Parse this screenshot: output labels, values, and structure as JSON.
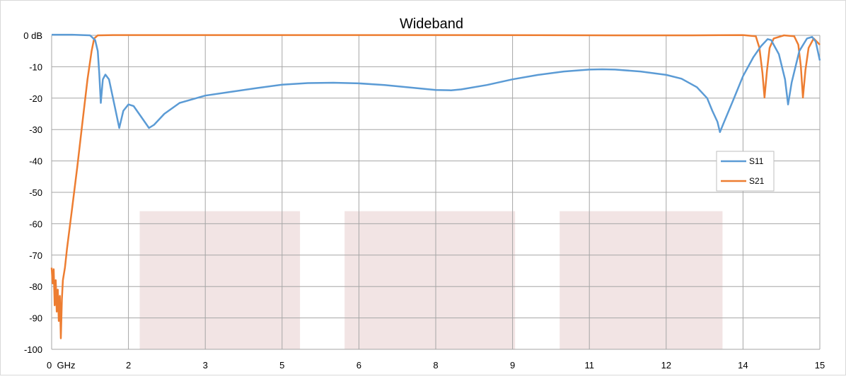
{
  "chart_data": {
    "type": "line",
    "title": "Wideband",
    "xlabel": "",
    "ylabel": "",
    "xlim": [
      0,
      15
    ],
    "ylim": [
      -100,
      0
    ],
    "grid": true,
    "legend_placement": "right",
    "x_ticks": [
      {
        "value": 0,
        "label": "0  GHz"
      },
      {
        "value": 1.5,
        "label": "2"
      },
      {
        "value": 3,
        "label": "3"
      },
      {
        "value": 4.5,
        "label": "5"
      },
      {
        "value": 6,
        "label": "6"
      },
      {
        "value": 7.5,
        "label": "8"
      },
      {
        "value": 9,
        "label": "9"
      },
      {
        "value": 10.5,
        "label": "11"
      },
      {
        "value": 12,
        "label": "12"
      },
      {
        "value": 13.5,
        "label": "14"
      },
      {
        "value": 15,
        "label": "15"
      }
    ],
    "y_ticks": [
      {
        "value": 0,
        "label": "0 dB"
      },
      {
        "value": -10,
        "label": "-10"
      },
      {
        "value": -20,
        "label": "-20"
      },
      {
        "value": -30,
        "label": "-30"
      },
      {
        "value": -40,
        "label": "-40"
      },
      {
        "value": -50,
        "label": "-50"
      },
      {
        "value": -60,
        "label": "-60"
      },
      {
        "value": -70,
        "label": "-70"
      },
      {
        "value": -80,
        "label": "-80"
      },
      {
        "value": -90,
        "label": "-90"
      },
      {
        "value": -100,
        "label": "-100"
      }
    ],
    "bands": [
      {
        "x0": 1.72,
        "x1": 4.85,
        "y0": -100,
        "y1": -56,
        "color": "#f2e4e4"
      },
      {
        "x0": 5.72,
        "x1": 9.05,
        "y0": -100,
        "y1": -56,
        "color": "#f2e4e4"
      },
      {
        "x0": 9.92,
        "x1": 13.1,
        "y0": -100,
        "y1": -56,
        "color": "#f2e4e4"
      }
    ],
    "series": [
      {
        "name": "S11",
        "color": "#5b9bd5",
        "points": [
          [
            0,
            0.2
          ],
          [
            0.4,
            0.2
          ],
          [
            0.75,
            0
          ],
          [
            0.85,
            -1.5
          ],
          [
            0.9,
            -5
          ],
          [
            0.93,
            -12
          ],
          [
            0.96,
            -21.5
          ],
          [
            1.0,
            -14
          ],
          [
            1.05,
            -12.5
          ],
          [
            1.12,
            -14
          ],
          [
            1.25,
            -24
          ],
          [
            1.32,
            -29.5
          ],
          [
            1.4,
            -24
          ],
          [
            1.5,
            -22
          ],
          [
            1.6,
            -22.5
          ],
          [
            1.75,
            -26
          ],
          [
            1.9,
            -29.5
          ],
          [
            2.0,
            -28.5
          ],
          [
            2.2,
            -25
          ],
          [
            2.5,
            -21.5
          ],
          [
            3.0,
            -19.2
          ],
          [
            3.5,
            -18
          ],
          [
            4.0,
            -16.8
          ],
          [
            4.5,
            -15.7
          ],
          [
            5.0,
            -15.2
          ],
          [
            5.5,
            -15.1
          ],
          [
            6.0,
            -15.3
          ],
          [
            6.5,
            -15.8
          ],
          [
            7.0,
            -16.6
          ],
          [
            7.5,
            -17.4
          ],
          [
            7.8,
            -17.5
          ],
          [
            8.0,
            -17.2
          ],
          [
            8.5,
            -15.8
          ],
          [
            9.0,
            -14
          ],
          [
            9.5,
            -12.6
          ],
          [
            10.0,
            -11.5
          ],
          [
            10.5,
            -10.9
          ],
          [
            10.75,
            -10.8
          ],
          [
            11.0,
            -10.9
          ],
          [
            11.5,
            -11.5
          ],
          [
            12.0,
            -12.6
          ],
          [
            12.3,
            -13.8
          ],
          [
            12.6,
            -16.5
          ],
          [
            12.8,
            -20
          ],
          [
            12.9,
            -24
          ],
          [
            13.0,
            -27.5
          ],
          [
            13.05,
            -30.8
          ],
          [
            13.12,
            -28
          ],
          [
            13.3,
            -21
          ],
          [
            13.5,
            -13
          ],
          [
            13.7,
            -7
          ],
          [
            13.85,
            -3.5
          ],
          [
            13.98,
            -1.2
          ],
          [
            14.05,
            -1.5
          ],
          [
            14.2,
            -6
          ],
          [
            14.32,
            -14
          ],
          [
            14.38,
            -22
          ],
          [
            14.45,
            -15
          ],
          [
            14.6,
            -5
          ],
          [
            14.75,
            -1
          ],
          [
            14.85,
            -0.5
          ],
          [
            14.92,
            -2
          ],
          [
            15.0,
            -8
          ]
        ]
      },
      {
        "name": "S21",
        "color": "#ed7d31",
        "points": [
          [
            0.0,
            -74
          ],
          [
            0.02,
            -79
          ],
          [
            0.04,
            -74.5
          ],
          [
            0.06,
            -86
          ],
          [
            0.08,
            -78
          ],
          [
            0.1,
            -88
          ],
          [
            0.12,
            -81
          ],
          [
            0.14,
            -91
          ],
          [
            0.16,
            -83
          ],
          [
            0.18,
            -96.5
          ],
          [
            0.2,
            -84
          ],
          [
            0.22,
            -78
          ],
          [
            0.26,
            -74
          ],
          [
            0.3,
            -68
          ],
          [
            0.4,
            -55
          ],
          [
            0.5,
            -42
          ],
          [
            0.6,
            -28
          ],
          [
            0.7,
            -14
          ],
          [
            0.78,
            -5
          ],
          [
            0.83,
            -1
          ],
          [
            0.9,
            0
          ],
          [
            1.2,
            0.1
          ],
          [
            4.0,
            0.1
          ],
          [
            8.0,
            0.1
          ],
          [
            11.0,
            0
          ],
          [
            12.5,
            0
          ],
          [
            13.5,
            0.1
          ],
          [
            13.75,
            -0.3
          ],
          [
            13.82,
            -4
          ],
          [
            13.88,
            -12
          ],
          [
            13.92,
            -19.8
          ],
          [
            13.97,
            -11
          ],
          [
            14.02,
            -4
          ],
          [
            14.1,
            -1
          ],
          [
            14.3,
            0
          ],
          [
            14.5,
            -0.3
          ],
          [
            14.58,
            -3
          ],
          [
            14.63,
            -10
          ],
          [
            14.67,
            -19.8
          ],
          [
            14.72,
            -11
          ],
          [
            14.78,
            -4
          ],
          [
            14.88,
            -1
          ],
          [
            15.0,
            -3
          ]
        ]
      }
    ]
  }
}
